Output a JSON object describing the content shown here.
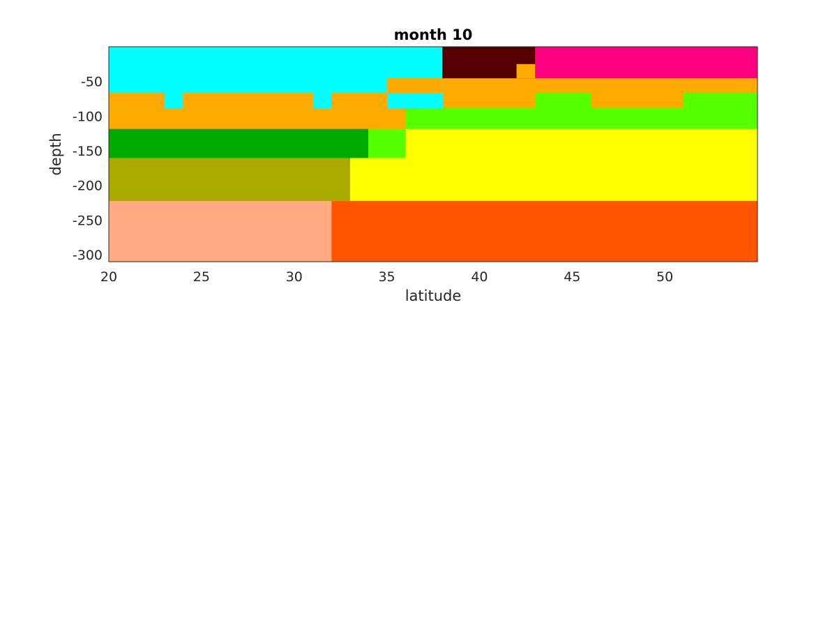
{
  "chart_data": {
    "type": "heatmap",
    "title": "month 10",
    "xlabel": "latitude",
    "ylabel": "depth",
    "xlim": [
      20,
      55
    ],
    "ylim": [
      -310,
      0
    ],
    "xticks": [
      20,
      25,
      30,
      35,
      40,
      45,
      50
    ],
    "yticks": [
      -50,
      -100,
      -150,
      -200,
      -250,
      -300
    ],
    "grid": false,
    "legend": "none",
    "cells": [
      {
        "x0": 20,
        "x1": 55,
        "y0": -310,
        "y1": -222,
        "color": "#ff5500"
      },
      {
        "x0": 20,
        "x1": 32,
        "y0": -310,
        "y1": -222,
        "color": "#ffaa80"
      },
      {
        "x0": 20,
        "x1": 55,
        "y0": -222,
        "y1": -118,
        "color": "#ffff00"
      },
      {
        "x0": 20,
        "x1": 33,
        "y0": -222,
        "y1": -160,
        "color": "#aaaa00"
      },
      {
        "x0": 20,
        "x1": 34,
        "y0": -160,
        "y1": -118,
        "color": "#00aa00"
      },
      {
        "x0": 34,
        "x1": 36,
        "y0": -160,
        "y1": -118,
        "color": "#55ff00"
      },
      {
        "x0": 20,
        "x1": 55,
        "y0": -118,
        "y1": -45,
        "color": "#ffaa00"
      },
      {
        "x0": 36,
        "x1": 55,
        "y0": -118,
        "y1": -88,
        "color": "#55ff00"
      },
      {
        "x0": 43,
        "x1": 46,
        "y0": -88,
        "y1": -66,
        "color": "#55ff00"
      },
      {
        "x0": 51,
        "x1": 55,
        "y0": -88,
        "y1": -66,
        "color": "#55ff00"
      },
      {
        "x0": 20,
        "x1": 38,
        "y0": -88,
        "y1": 0,
        "color": "#00ffff"
      },
      {
        "x0": 20,
        "x1": 23,
        "y0": -88,
        "y1": -66,
        "color": "#ffaa00"
      },
      {
        "x0": 24,
        "x1": 31,
        "y0": -88,
        "y1": -66,
        "color": "#ffaa00"
      },
      {
        "x0": 32,
        "x1": 35,
        "y0": -88,
        "y1": -66,
        "color": "#ffaa00"
      },
      {
        "x0": 35,
        "x1": 38,
        "y0": -66,
        "y1": -45,
        "color": "#ffaa00"
      },
      {
        "x0": 38,
        "x1": 43,
        "y0": -45,
        "y1": 0,
        "color": "#550000"
      },
      {
        "x0": 42,
        "x1": 43,
        "y0": -45,
        "y1": -25,
        "color": "#ffaa00"
      },
      {
        "x0": 43,
        "x1": 55,
        "y0": -45,
        "y1": 0,
        "color": "#ff0080"
      }
    ]
  }
}
